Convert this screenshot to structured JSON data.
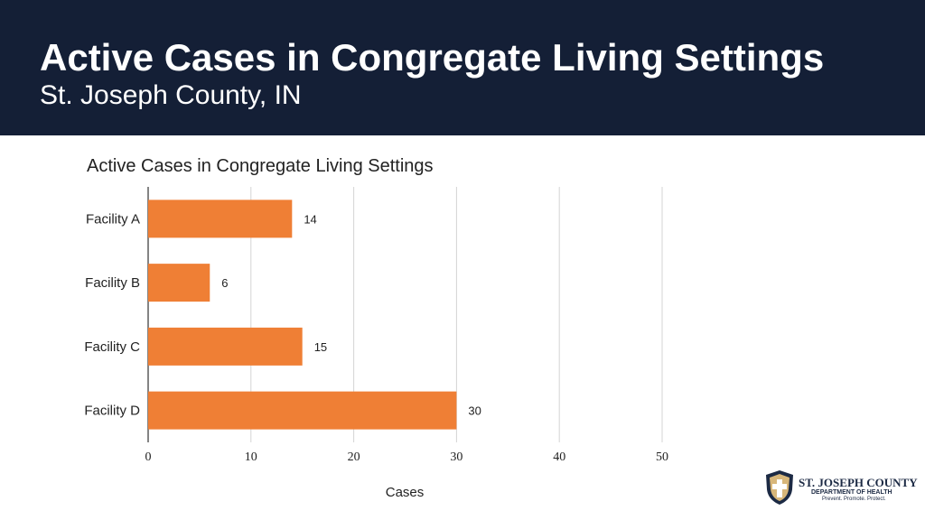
{
  "slide": {
    "title": "Active Cases in Congregate Living Settings",
    "subtitle": "St. Joseph County, IN"
  },
  "colors": {
    "header_bg": "#141f36",
    "bar": "#ef7f35",
    "grid": "#d4d4d4",
    "axis": "#333333"
  },
  "logo": {
    "line1": "ST. JOSEPH COUNTY",
    "line2": "DEPARTMENT OF HEALTH",
    "line3": "Prevent. Promote. Protect.",
    "icon": "shield-cross-icon"
  },
  "chart_data": {
    "type": "bar",
    "orientation": "horizontal",
    "title": "Active Cases in Congregate Living Settings",
    "categories": [
      "Facility A",
      "Facility B",
      "Facility C",
      "Facility D"
    ],
    "values": [
      14,
      6,
      15,
      30
    ],
    "data_labels": [
      "14",
      "6",
      "15",
      "30"
    ],
    "xlabel": "Cases",
    "ylabel": "",
    "xlim": [
      0,
      50
    ],
    "xticks": [
      0,
      10,
      20,
      30,
      40,
      50
    ],
    "xtick_labels": [
      "0",
      "10",
      "20",
      "30",
      "40",
      "50"
    ],
    "grid": true,
    "legend": "none"
  }
}
